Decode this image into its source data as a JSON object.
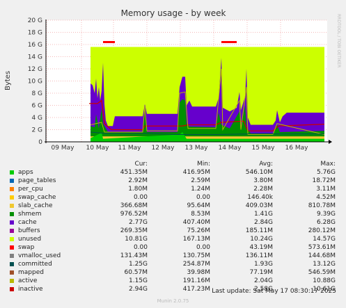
{
  "chart_data": {
    "type": "area",
    "title": "Memory usage - by week",
    "ylabel": "Bytes",
    "side_text": "RRDTOOL / TOBI OETIKER",
    "ylim": [
      0,
      20
    ],
    "y_ticks": [
      "0",
      "2 G",
      "4 G",
      "6 G",
      "8 G",
      "10 G",
      "12 G",
      "14 G",
      "16 G",
      "18 G",
      "20 G"
    ],
    "x_ticks": [
      "09 May",
      "10 May",
      "11 May",
      "12 May",
      "13 May",
      "14 May",
      "15 May",
      "16 May"
    ],
    "grid": true,
    "columns": [
      "Cur:",
      "Min:",
      "Avg:",
      "Max:"
    ],
    "series": [
      {
        "name": "apps",
        "color": "#00CC00",
        "cur": "451.35M",
        "min": "416.95M",
        "avg": "546.10M",
        "max": "5.76G"
      },
      {
        "name": "page_tables",
        "color": "#0066B3",
        "cur": "2.92M",
        "min": "2.59M",
        "avg": "3.80M",
        "max": "18.72M"
      },
      {
        "name": "per_cpu",
        "color": "#FF8000",
        "cur": "1.80M",
        "min": "1.24M",
        "avg": "2.28M",
        "max": "3.11M"
      },
      {
        "name": "swap_cache",
        "color": "#FFCC00",
        "cur": "0.00",
        "min": "0.00",
        "avg": "146.40k",
        "max": "4.52M"
      },
      {
        "name": "slab_cache",
        "color": "#F0C830",
        "cur": "366.68M",
        "min": "95.64M",
        "avg": "409.03M",
        "max": "810.78M"
      },
      {
        "name": "shmem",
        "color": "#008F00",
        "cur": "976.52M",
        "min": "8.53M",
        "avg": "1.41G",
        "max": "9.39G"
      },
      {
        "name": "cache",
        "color": "#6600CC",
        "cur": "2.77G",
        "min": "407.40M",
        "avg": "2.84G",
        "max": "6.28G"
      },
      {
        "name": "buffers",
        "color": "#990099",
        "cur": "269.35M",
        "min": "75.26M",
        "avg": "185.11M",
        "max": "280.12M"
      },
      {
        "name": "unused",
        "color": "#CCFF00",
        "cur": "10.81G",
        "min": "167.13M",
        "avg": "10.24G",
        "max": "14.57G"
      },
      {
        "name": "swap",
        "color": "#FF0000",
        "cur": "0.00",
        "min": "0.00",
        "avg": "43.19M",
        "max": "573.61M"
      },
      {
        "name": "vmalloc_used",
        "color": "#808080",
        "cur": "131.43M",
        "min": "130.75M",
        "avg": "136.11M",
        "max": "144.68M"
      },
      {
        "name": "committed",
        "color": "#005050",
        "cur": "1.25G",
        "min": "254.87M",
        "avg": "1.93G",
        "max": "13.12G"
      },
      {
        "name": "mapped",
        "color": "#A05028",
        "cur": "60.57M",
        "min": "39.98M",
        "avg": "77.19M",
        "max": "546.59M"
      },
      {
        "name": "active",
        "color": "#B8B800",
        "cur": "1.15G",
        "min": "191.16M",
        "avg": "2.04G",
        "max": "10.88G"
      },
      {
        "name": "inactive",
        "color": "#CC0000",
        "cur": "2.94G",
        "min": "417.23M",
        "avg": "2.58G",
        "max": "10.61G"
      }
    ],
    "last_update": "Last update: Sat May 17 08:30:17 2025",
    "footer": "Munin 2.0.75"
  }
}
